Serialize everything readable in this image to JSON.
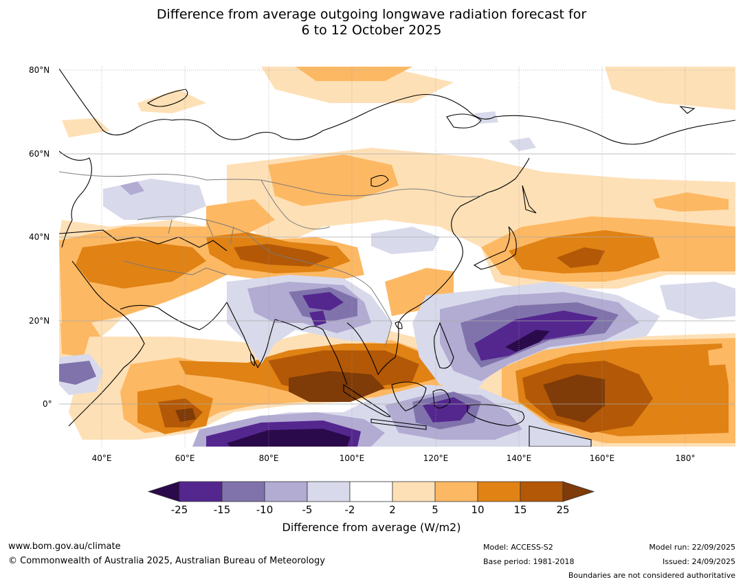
{
  "title": {
    "line1": "Difference from average outgoing longwave radiation forecast for",
    "line2": "6 to 12 October 2025"
  },
  "map": {
    "lat_labels": [
      "80°N",
      "60°N",
      "40°N",
      "20°N",
      "0°"
    ],
    "lon_labels": [
      "40°E",
      "60°E",
      "80°E",
      "100°E",
      "120°E",
      "140°E",
      "160°E",
      "180°"
    ],
    "lat_range": [
      -10,
      80
    ],
    "lon_range": [
      30,
      192
    ]
  },
  "colorbar": {
    "ticks": [
      "-25",
      "-15",
      "-10",
      "-5",
      "-2",
      "2",
      "5",
      "10",
      "15",
      "25"
    ],
    "colors": [
      "#2a0a4a",
      "#54278f",
      "#8073ac",
      "#b2abd2",
      "#d8daeb",
      "#ffffff",
      "#fee0b6",
      "#fdb863",
      "#e08214",
      "#b35806",
      "#7f3b08"
    ],
    "label": "Difference from average (W/m2)"
  },
  "footer": {
    "website": "www.bom.gov.au/climate",
    "copyright": "© Commonwealth of Australia 2025, Australian Bureau of Meteorology",
    "model": "Model: ACCESS-S2",
    "base_period": "Base period: 1981-2018",
    "model_run": "Model run: 22/09/2025",
    "issued": "Issued: 24/09/2025",
    "disclaimer": "Boundaries are not considered authoritative"
  }
}
